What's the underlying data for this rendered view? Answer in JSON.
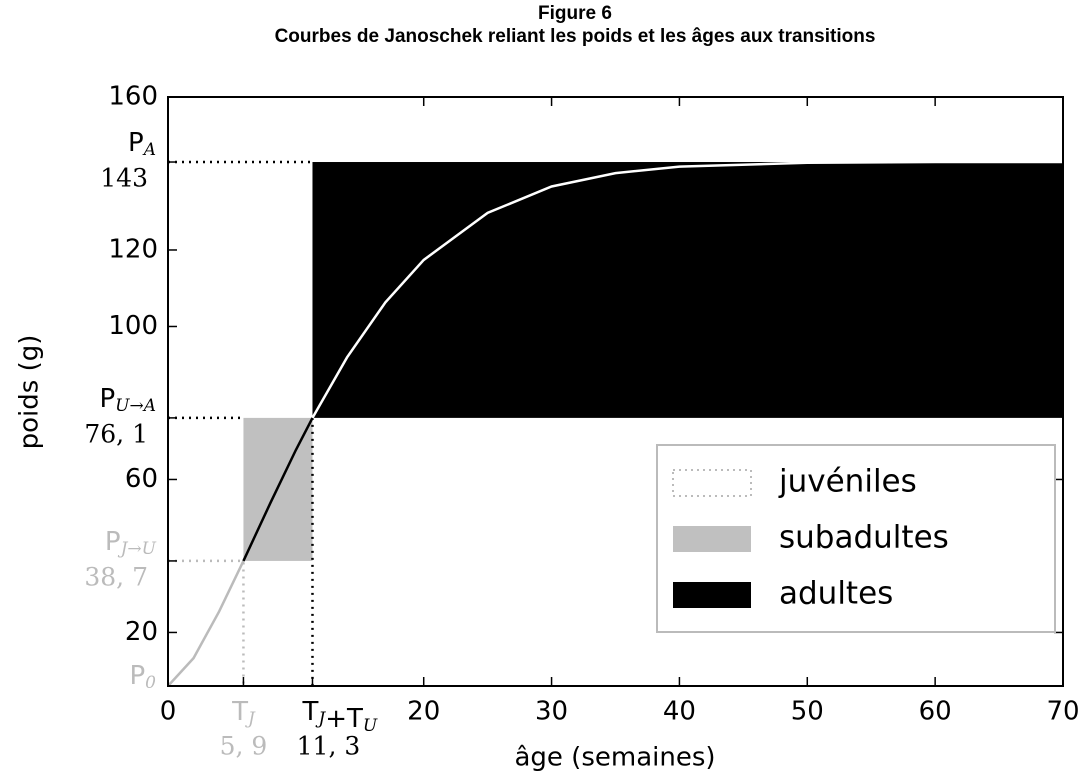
{
  "chart_data": {
    "type": "janoschek",
    "title": "Figure 6",
    "subtitle": "Courbes de Janoschek reliant les poids et les âges aux transitions",
    "xlabel": "âge (semaines)",
    "ylabel": "poids (g)",
    "xlim": [
      0,
      70
    ],
    "ylim": [
      6,
      160
    ],
    "xticks": [
      0,
      20,
      30,
      40,
      50,
      60,
      70
    ],
    "yticks": [
      20,
      60,
      100,
      120,
      160
    ],
    "xticks_special": [
      {
        "value": 5.9,
        "label": "5, 9",
        "color": "#bbbbbb",
        "parts": [
          {
            "text": "T",
            "sub": "J"
          }
        ]
      },
      {
        "value": 11.3,
        "label": "11, 3",
        "color": "#000000",
        "parts": [
          {
            "text": "T",
            "sub": "J"
          },
          {
            "text": "+T",
            "sub": "U"
          }
        ]
      }
    ],
    "yticks_special": [
      {
        "value": 143,
        "label": "143",
        "color": "#000000",
        "parts": [
          {
            "text": "P",
            "sub": "A"
          }
        ]
      },
      {
        "value": 76.1,
        "label": "76, 1",
        "color": "#000000",
        "parts": [
          {
            "text": "P",
            "sub": "U→A"
          }
        ]
      },
      {
        "value": 38.7,
        "label": "38, 7",
        "color": "#bbbbbb",
        "parts": [
          {
            "text": "P",
            "sub": "J→U"
          }
        ]
      },
      {
        "value": 6,
        "color": "#bbbbbb",
        "parts": [
          {
            "text": "P",
            "sub": "0"
          }
        ]
      }
    ],
    "regions": [
      {
        "name": "juvéniles",
        "style": "dotted",
        "color": "#bbbbbb",
        "curve_color": "#bbbbbb",
        "x": [
          0,
          5.9
        ],
        "y": [
          6,
          38.7
        ]
      },
      {
        "name": "subadultes",
        "style": "filled",
        "color": "#c0c0c0",
        "curve_color": "#000000",
        "x": [
          5.9,
          11.3
        ],
        "y": [
          38.7,
          76.1
        ]
      },
      {
        "name": "adultes",
        "style": "filled",
        "color": "#000000",
        "curve_color": "#ffffff",
        "x": [
          11.3,
          70
        ],
        "y": [
          76.1,
          143
        ]
      }
    ],
    "curve": {
      "x": [
        0,
        2,
        4,
        5.9,
        8,
        10,
        11.3,
        14,
        17,
        20,
        25,
        30,
        35,
        40,
        50,
        60,
        70
      ],
      "values": [
        6,
        13.3,
        25.5,
        38.7,
        53.8,
        67.7,
        76.1,
        91.9,
        106.3,
        117.4,
        129.7,
        136.6,
        140.1,
        141.8,
        142.8,
        143,
        143
      ]
    },
    "legend": "lower right"
  }
}
